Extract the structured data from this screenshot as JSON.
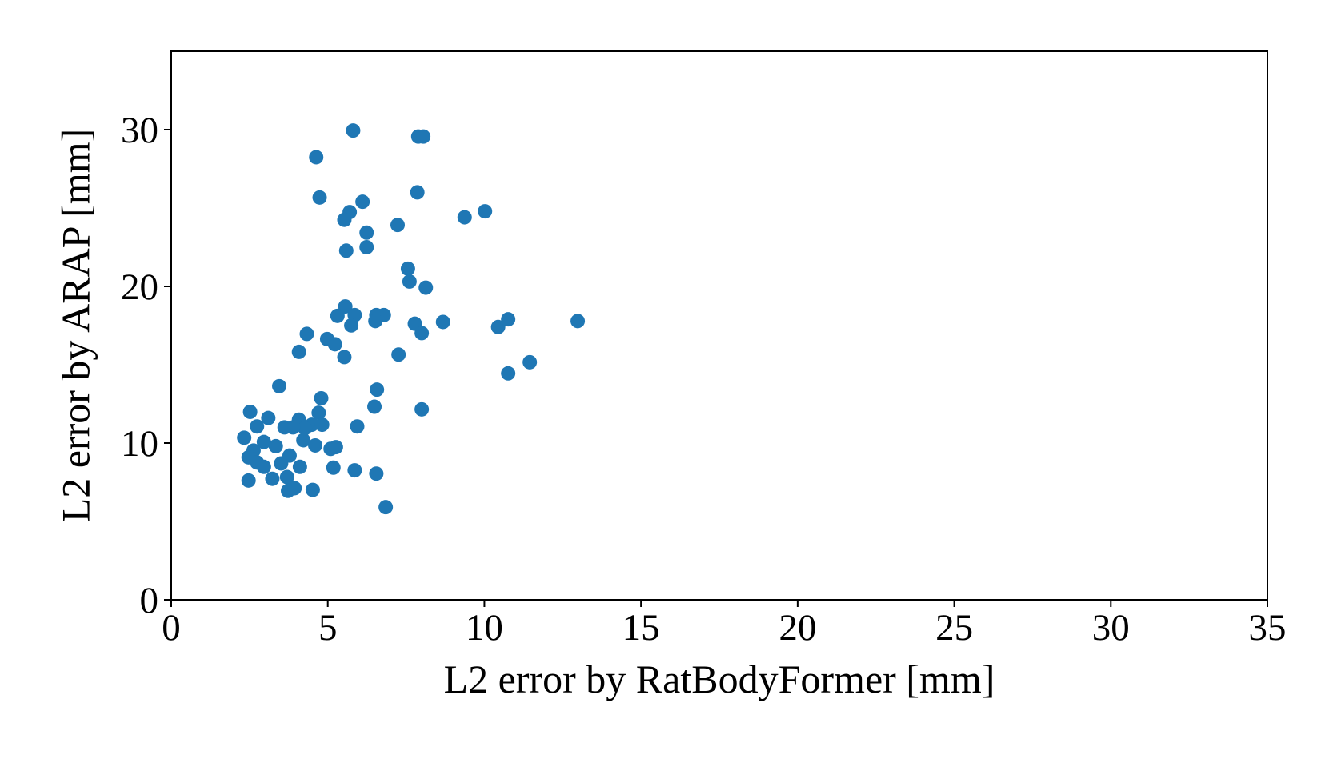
{
  "chart_data": {
    "type": "scatter",
    "x_label": "L2 error by RatBodyFormer [mm]",
    "y_label": "L2 error by ARAP [mm]",
    "color": "#1f77b4",
    "xlim": [
      0,
      35
    ],
    "xticks": [
      0,
      5,
      10,
      15,
      20,
      25,
      30,
      35
    ],
    "ylim": [
      0,
      35
    ],
    "yticks": [
      0,
      10,
      20,
      30
    ],
    "x": [
      5.81,
      7.89,
      8.05,
      4.63,
      4.74,
      7.86,
      5.7,
      6.11,
      5.53,
      6.24,
      7.23,
      9.37,
      10.02,
      5.59,
      6.24,
      7.56,
      7.61,
      8.13,
      5.56,
      5.31,
      5.86,
      5.75,
      6.55,
      6.79,
      6.52,
      7.78,
      8.0,
      8.68,
      10.44,
      10.76,
      12.98,
      4.33,
      4.98,
      5.23,
      4.08,
      5.53,
      7.26,
      11.45,
      10.76,
      3.45,
      6.57,
      4.79,
      6.49,
      8.0,
      2.52,
      4.71,
      3.1,
      4.08,
      2.74,
      3.62,
      4.49,
      4.82,
      5.94,
      2.33,
      2.96,
      3.34,
      4.22,
      4.6,
      5.09,
      5.26,
      2.63,
      2.47,
      3.78,
      2.74,
      2.96,
      3.51,
      4.11,
      5.18,
      5.86,
      6.55,
      2.47,
      3.23,
      3.7,
      3.73,
      3.94,
      4.52,
      6.85,
      4.27,
      3.89
    ],
    "values": [
      29.94,
      29.56,
      29.56,
      28.24,
      25.67,
      26.0,
      24.74,
      25.4,
      24.25,
      23.43,
      23.92,
      24.41,
      24.79,
      22.28,
      22.5,
      21.13,
      20.31,
      19.92,
      18.72,
      18.12,
      18.17,
      17.51,
      18.17,
      18.17,
      17.79,
      17.62,
      17.02,
      17.73,
      17.41,
      17.9,
      17.79,
      16.97,
      16.64,
      16.31,
      15.82,
      15.49,
      15.65,
      15.16,
      14.45,
      13.63,
      13.41,
      12.86,
      12.32,
      12.15,
      11.99,
      11.93,
      11.6,
      11.49,
      11.06,
      11.0,
      11.17,
      11.17,
      11.06,
      10.34,
      10.07,
      9.8,
      10.18,
      9.85,
      9.63,
      9.74,
      9.52,
      9.09,
      9.2,
      8.76,
      8.48,
      8.7,
      8.48,
      8.43,
      8.26,
      8.05,
      7.61,
      7.72,
      7.83,
      6.95,
      7.12,
      7.01,
      5.91,
      10.95,
      11.0
    ]
  }
}
